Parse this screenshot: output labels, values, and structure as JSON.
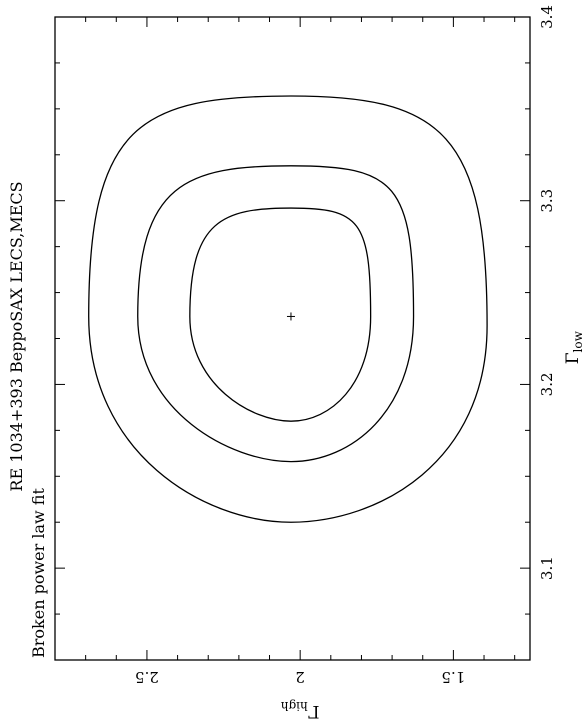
{
  "chart_data": {
    "type": "contour",
    "title_lines": [
      "RE 1034+393 BeppoSAX LECS,MECS",
      "Broken power law fit"
    ],
    "xlabel": "Γ",
    "xlabel_sub": "low",
    "ylabel": "Γ",
    "ylabel_sub": "high",
    "xlim": [
      3.05,
      3.4
    ],
    "ylim": [
      1.25,
      2.8
    ],
    "x_major_ticks": [
      3.1,
      3.2,
      3.3,
      3.4
    ],
    "x_tick_labels": [
      "3.1",
      "3.2",
      "3.3",
      "3.4"
    ],
    "y_major_ticks": [
      1.5,
      2,
      2.5
    ],
    "y_tick_labels": [
      "1.5",
      "2",
      "2.5"
    ],
    "best_fit": {
      "x": 3.237,
      "y": 2.03,
      "marker": "+"
    },
    "contours": [
      {
        "xmin": 3.18,
        "xmax": 3.296,
        "ymin": 1.77,
        "ymax": 2.36,
        "x_at_ymin": 3.237,
        "x_at_ymax": 3.237
      },
      {
        "xmin": 3.158,
        "xmax": 3.319,
        "ymin": 1.63,
        "ymax": 2.53,
        "x_at_ymin": 3.237,
        "x_at_ymax": 3.237
      },
      {
        "xmin": 3.125,
        "xmax": 3.357,
        "ymin": 1.39,
        "ymax": 2.69,
        "x_at_ymin": 3.232,
        "x_at_ymax": 3.237
      }
    ]
  }
}
